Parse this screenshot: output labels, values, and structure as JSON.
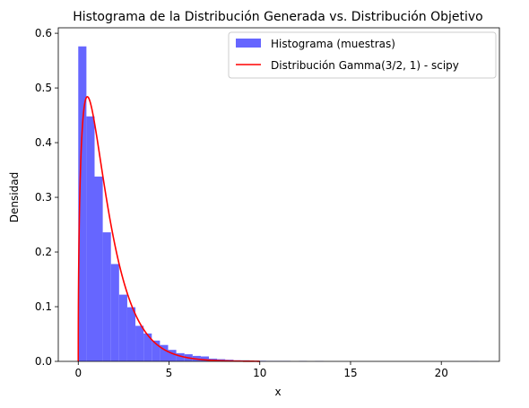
{
  "chart_data": {
    "type": "bar",
    "title": "Histograma de la Distribución Generada vs. Distribución Objetivo",
    "xlabel": "x",
    "ylabel": "Densidad",
    "xlim": [
      -1.1,
      23.2
    ],
    "ylim": [
      0,
      0.61
    ],
    "xticks": [
      0,
      5,
      10,
      15,
      20
    ],
    "yticks": [
      0.0,
      0.1,
      0.2,
      0.3,
      0.4,
      0.5,
      0.6
    ],
    "grid": false,
    "legend_position": "upper right",
    "histogram": {
      "name": "Histograma (muestras)",
      "color": "#6666ff",
      "bin_edges": [
        0.0,
        0.45,
        0.9,
        1.35,
        1.8,
        2.25,
        2.7,
        3.15,
        3.6,
        4.05,
        4.5,
        4.95,
        5.4,
        5.85,
        6.3,
        6.75,
        7.2,
        7.65,
        8.1,
        8.55,
        9.0,
        9.45,
        9.9,
        10.35,
        10.8,
        11.25,
        11.7,
        12.15,
        12.6,
        13.05,
        13.5,
        13.95,
        14.4,
        14.85,
        15.3,
        15.75,
        16.2,
        16.65,
        17.1,
        17.55,
        18.0,
        18.45,
        18.9,
        19.35,
        19.8,
        20.25,
        20.7,
        21.15,
        21.6,
        22.05
      ],
      "values": [
        0.576,
        0.448,
        0.338,
        0.236,
        0.178,
        0.122,
        0.099,
        0.065,
        0.051,
        0.038,
        0.03,
        0.021,
        0.015,
        0.013,
        0.01,
        0.009,
        0.005,
        0.004,
        0.003,
        0.002,
        0.002,
        0.001,
        0.001,
        0.0008,
        0.0008,
        0.0008,
        0.0,
        0.0006,
        0.0,
        0.0005,
        0.0,
        0.0,
        0.0,
        0.0,
        0.0,
        0.0,
        0.0,
        0.0,
        0.0,
        0.0,
        0.0,
        0.0,
        0.0,
        0.0,
        0.0,
        0.0,
        0.0,
        0.0,
        0.0004
      ]
    },
    "line": {
      "name": "Distribución Gamma(3/2, 1) - scipy",
      "color": "#ff0000",
      "shape": 1.5,
      "scale": 1,
      "x_range": [
        0,
        10
      ]
    }
  }
}
